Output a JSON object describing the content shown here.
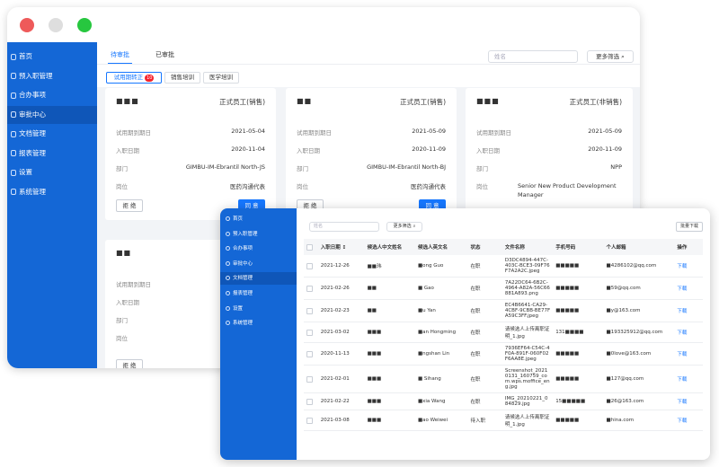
{
  "back_window": {
    "menu": [
      "首页",
      "预入职管理",
      "合办事项",
      "审批中心",
      "文档管理",
      "报表管理",
      "设置",
      "系统管理"
    ],
    "active_menu": 3,
    "tabs": [
      "待审批",
      "已审批"
    ],
    "active_tab": 0,
    "search_placeholder": "姓名",
    "filter_button": "更多筛选",
    "sub_tabs": [
      {
        "label": "试用期转正",
        "badge": 10
      },
      {
        "label": "销售培训"
      },
      {
        "label": "医学培训"
      }
    ],
    "cards": [
      {
        "name": "■■■",
        "type": "正式员工(销售)",
        "fields": [
          {
            "label": "试用期到期日",
            "value": "2021-05-04"
          },
          {
            "label": "入职日期",
            "value": "2020-11-04"
          },
          {
            "label": "部门",
            "value": "GIMBU-IM-Ebrantil North-JS"
          },
          {
            "label": "岗位",
            "value": "医药沟通代表"
          }
        ],
        "buttons": [
          "拒 绝",
          "同 意"
        ]
      },
      {
        "name": "■■",
        "type": "正式员工(销售)",
        "fields": [
          {
            "label": "试用期到期日",
            "value": "2021-05-09"
          },
          {
            "label": "入职日期",
            "value": "2020-11-09"
          },
          {
            "label": "部门",
            "value": "GIMBU-IM-Ebrantil North-BJ"
          },
          {
            "label": "岗位",
            "value": "医药沟通代表"
          }
        ],
        "buttons": [
          "拒 绝",
          "同 意"
        ]
      },
      {
        "name": "■■■",
        "type": "正式员工(非销售)",
        "fields": [
          {
            "label": "试用期到期日",
            "value": "2021-05-09"
          },
          {
            "label": "入职日期",
            "value": "2020-11-09"
          },
          {
            "label": "部门",
            "value": "NPP"
          },
          {
            "label": "岗位",
            "value": "Senior New Product Development Manager"
          }
        ]
      },
      {
        "name": "■■",
        "fields": [
          {
            "label": "试用期到期日"
          },
          {
            "label": "入职日期"
          },
          {
            "label": "部门"
          },
          {
            "label": "岗位"
          }
        ],
        "buttons": [
          "拒 绝"
        ]
      }
    ]
  },
  "front_window": {
    "menu": [
      "首页",
      "预入职管理",
      "合办事项",
      "审批中心",
      "文档管理",
      "报表管理",
      "设置",
      "系统管理"
    ],
    "active_menu": 4,
    "search_placeholder": "姓名",
    "filter_button": "更多筛选",
    "bulk_button": "批量下载",
    "columns": [
      "入职日期 ↕",
      "候选人中文姓名",
      "候选人英文名",
      "状态",
      "文件名称",
      "手机号码",
      "个人邮箱",
      "操作"
    ],
    "rows": [
      [
        "2021-12-26",
        "■■玮",
        "■ong Guo",
        "在职",
        "D3DC4894-447C-403C-BCE3-09F76F7A2A2C.jpeg",
        "■■■■■",
        "■4286102@qq.com",
        "下载"
      ],
      [
        "2021-02-26",
        "■■",
        "■ Gao",
        "在职",
        "7A22DC64-6B2C-4964-A82A-56C66881A893.png",
        "■■■■■",
        "■59@qq.com",
        "下载"
      ],
      [
        "2021-02-23",
        "■■",
        "■u Yan",
        "在职",
        "EC4B6641-CA29-4CBF-9CBB-BE77FA59C3FF.jpeg",
        "■■■■■",
        "■y@163.com",
        "下载"
      ],
      [
        "2021-03-02",
        "■■■",
        "■an Hongming",
        "在职",
        "请候选人上传离职证明_1.jpg",
        "131■■■■",
        "■193325912@qq.com",
        "下载"
      ],
      [
        "2020-11-13",
        "■■■",
        "■ngshan Lin",
        "在职",
        "7936EF64-C54C-4F0A-891F-060F02F6AA8E.jpeg",
        "■■■■■",
        "■0love@163.com",
        "下载"
      ],
      [
        "2021-02-01",
        "■■■",
        "■ Sihang",
        "在职",
        "Screenshot_20210131_160759_com.wps.moffice_eng.jpg",
        "■■■■■",
        "■127@qq.com",
        "下载"
      ],
      [
        "2021-02-22",
        "■■■",
        "■xia Wang",
        "在职",
        "IMG_20210221_084829.jpg",
        "15■■■■■",
        "■26@163.com",
        "下载"
      ],
      [
        "2021-03-08",
        "■■■",
        "■ao Weiwei",
        "待入职",
        "请候选人上传离职证明_1.jpg",
        "■■■■■",
        "■hina.com",
        "下载"
      ]
    ]
  }
}
